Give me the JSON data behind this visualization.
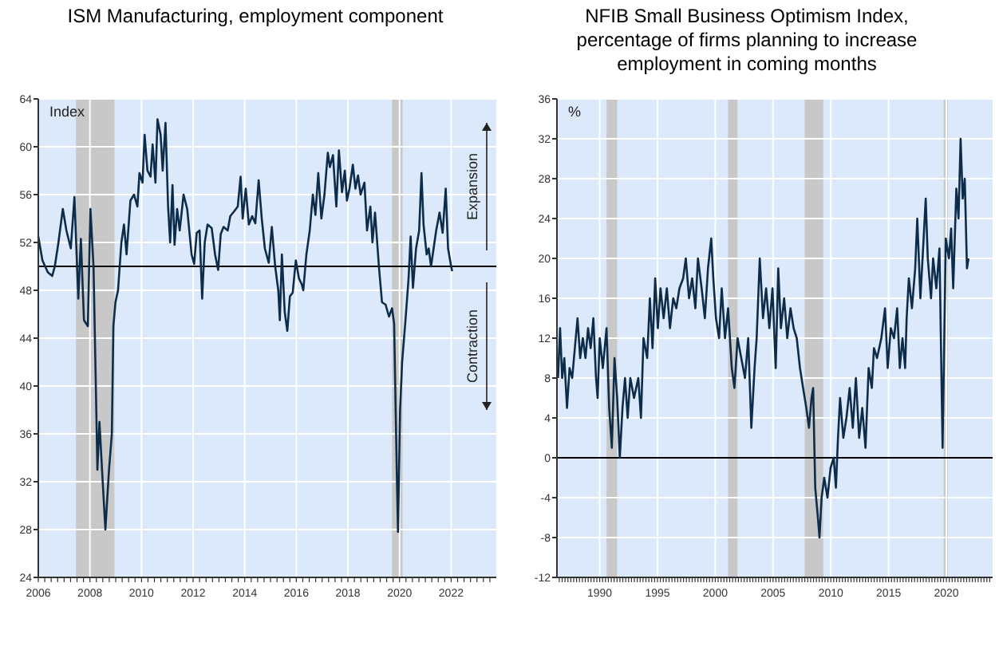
{
  "chart_data": [
    {
      "type": "line",
      "title": "ISM Manufacturing, employment component",
      "ylabel": "Index",
      "grid": true,
      "xlim": [
        2006,
        2023.75
      ],
      "xticks": [
        2006,
        2008,
        2010,
        2012,
        2014,
        2016,
        2018,
        2020,
        2022
      ],
      "ylim": [
        24,
        64
      ],
      "yticks": [
        24,
        28,
        32,
        36,
        40,
        44,
        48,
        52,
        56,
        60,
        64
      ],
      "ref_lines": [
        {
          "axis": "y",
          "value": 50,
          "color": "#000000"
        }
      ],
      "bands": [
        {
          "axis": "x",
          "from": 2007.46,
          "to": 2008.95,
          "color": "#c8c8c8"
        },
        {
          "axis": "x",
          "from": 2019.71,
          "to": 2020.12,
          "color": "#c8c8c8"
        }
      ],
      "annotations": [
        "Expansion",
        "Contraction"
      ],
      "series": [
        {
          "color": "#0d2c4a",
          "x": [
            2006.0,
            2006.16,
            2006.37,
            2006.54,
            2006.64,
            2006.78,
            2006.95,
            2007.09,
            2007.26,
            2007.4,
            2007.55,
            2007.65,
            2007.77,
            2007.92,
            2008.02,
            2008.14,
            2008.23,
            2008.29,
            2008.37,
            2008.47,
            2008.6,
            2008.74,
            2008.85,
            2008.91,
            2008.99,
            2009.09,
            2009.22,
            2009.32,
            2009.42,
            2009.57,
            2009.71,
            2009.84,
            2009.92,
            2010.04,
            2010.12,
            2010.23,
            2010.35,
            2010.43,
            2010.54,
            2010.62,
            2010.74,
            2010.82,
            2010.93,
            2011.03,
            2011.11,
            2011.2,
            2011.28,
            2011.38,
            2011.48,
            2011.63,
            2011.77,
            2011.94,
            2012.04,
            2012.14,
            2012.25,
            2012.35,
            2012.45,
            2012.56,
            2012.72,
            2012.85,
            2012.97,
            2013.07,
            2013.18,
            2013.34,
            2013.44,
            2013.59,
            2013.73,
            2013.84,
            2013.92,
            2014.04,
            2014.16,
            2014.29,
            2014.41,
            2014.54,
            2014.66,
            2014.78,
            2014.93,
            2015.05,
            2015.18,
            2015.3,
            2015.36,
            2015.44,
            2015.55,
            2015.65,
            2015.75,
            2015.86,
            2015.98,
            2016.1,
            2016.21,
            2016.27,
            2016.39,
            2016.52,
            2016.64,
            2016.74,
            2016.85,
            2016.97,
            2017.09,
            2017.22,
            2017.3,
            2017.42,
            2017.55,
            2017.65,
            2017.77,
            2017.88,
            2017.96,
            2018.06,
            2018.19,
            2018.29,
            2018.39,
            2018.49,
            2018.64,
            2018.74,
            2018.87,
            2018.95,
            2019.05,
            2019.2,
            2019.32,
            2019.46,
            2019.59,
            2019.71,
            2019.79,
            2019.9,
            2019.94,
            2020.02,
            2020.1,
            2020.23,
            2020.35,
            2020.43,
            2020.52,
            2020.64,
            2020.76,
            2020.85,
            2020.93,
            2021.05,
            2021.13,
            2021.22,
            2021.32,
            2021.42,
            2021.55,
            2021.67,
            2021.79,
            2021.88,
            2022.0,
            2022.04
          ],
          "values": [
            52.5,
            50.5,
            49.5,
            49.2,
            50,
            52,
            54.8,
            53,
            51.5,
            55.8,
            47.3,
            52.3,
            45.5,
            45,
            54.8,
            50,
            40,
            33,
            37,
            33,
            28,
            33,
            36,
            45,
            47,
            48,
            52,
            53.5,
            51,
            55.5,
            56,
            55,
            57.8,
            57,
            61,
            58,
            57.5,
            60.2,
            57,
            62.3,
            61,
            58,
            62,
            55,
            52,
            56.8,
            51.8,
            54.8,
            53,
            56,
            54.8,
            51,
            50.2,
            52.8,
            53,
            47.3,
            52,
            53.5,
            53.2,
            51,
            49.7,
            52.7,
            53.3,
            53,
            54.2,
            54.6,
            55,
            57.5,
            54,
            56.5,
            53.5,
            54.2,
            53.6,
            57.2,
            54,
            51.5,
            50.3,
            53.3,
            50,
            48,
            45.5,
            51,
            46.2,
            44.6,
            47.5,
            47.8,
            50.5,
            49,
            48.5,
            48,
            51,
            53,
            56,
            54.3,
            57.8,
            54,
            56,
            59.5,
            58.3,
            59.3,
            55,
            59.7,
            56.2,
            58,
            55.5,
            56.5,
            58.5,
            56.5,
            57.6,
            56,
            57,
            53,
            55,
            52,
            54.5,
            50,
            47,
            46.8,
            45.8,
            46.5,
            45.2,
            32,
            27.8,
            38,
            42,
            45.5,
            49,
            52.5,
            48.2,
            51.5,
            53,
            57.8,
            53.5,
            51,
            51.5,
            50,
            51.5,
            53,
            54.5,
            52.8,
            56.5,
            51.5,
            50,
            49.6
          ]
        }
      ]
    },
    {
      "type": "line",
      "title": "NFIB Small Business Optimism Index, percentage of firms planning to increase employment in coming months",
      "ylabel": "%",
      "grid": true,
      "xlim": [
        1986.3,
        2024
      ],
      "xticks": [
        1990,
        1995,
        2000,
        2005,
        2010,
        2015,
        2020
      ],
      "ylim": [
        -12,
        36
      ],
      "yticks": [
        -12,
        -8,
        -4,
        0,
        4,
        8,
        12,
        16,
        20,
        24,
        28,
        32,
        36
      ],
      "ref_lines": [
        {
          "axis": "y",
          "value": 0,
          "color": "#000000"
        }
      ],
      "bands": [
        {
          "axis": "x",
          "from": 1990.59,
          "to": 1991.51,
          "color": "#c8c8c8"
        },
        {
          "axis": "x",
          "from": 2001.11,
          "to": 2001.93,
          "color": "#c8c8c8"
        },
        {
          "axis": "x",
          "from": 2007.74,
          "to": 2009.34,
          "color": "#c8c8c8"
        },
        {
          "axis": "x",
          "from": 2019.77,
          "to": 2020.13,
          "color": "#c8c8c8"
        }
      ],
      "series": [
        {
          "color": "#0d2c4a",
          "x": [
            1986.39,
            1986.57,
            1986.75,
            1986.94,
            1987.17,
            1987.39,
            1987.62,
            1987.85,
            1988.08,
            1988.31,
            1988.54,
            1988.77,
            1988.99,
            1989.22,
            1989.45,
            1989.68,
            1989.82,
            1990.0,
            1990.27,
            1990.59,
            1990.82,
            1991.05,
            1991.28,
            1991.51,
            1991.74,
            1991.97,
            1992.19,
            1992.42,
            1992.65,
            1992.97,
            1993.34,
            1993.57,
            1993.79,
            1994.11,
            1994.34,
            1994.57,
            1994.8,
            1995.03,
            1995.26,
            1995.53,
            1995.81,
            1996.08,
            1996.36,
            1996.63,
            1996.9,
            1997.22,
            1997.45,
            1997.73,
            1998.0,
            1998.28,
            1998.5,
            1998.82,
            1999.1,
            1999.37,
            1999.65,
            1999.83,
            2000.06,
            2000.33,
            2000.56,
            2000.84,
            2001.11,
            2001.43,
            2001.66,
            2001.93,
            2002.25,
            2002.57,
            2002.85,
            2003.12,
            2003.4,
            2003.58,
            2003.85,
            2004.13,
            2004.4,
            2004.68,
            2004.95,
            2005.23,
            2005.45,
            2005.68,
            2005.96,
            2006.23,
            2006.51,
            2006.78,
            2007.05,
            2007.33,
            2007.6,
            2007.88,
            2008.11,
            2008.33,
            2008.47,
            2008.65,
            2008.88,
            2009.02,
            2009.2,
            2009.43,
            2009.71,
            2009.98,
            2010.25,
            2010.44,
            2010.62,
            2010.8,
            2011.08,
            2011.35,
            2011.63,
            2011.9,
            2012.17,
            2012.45,
            2012.72,
            2013.0,
            2013.27,
            2013.55,
            2013.73,
            2014.0,
            2014.37,
            2014.69,
            2014.92,
            2015.19,
            2015.47,
            2015.74,
            2015.97,
            2016.2,
            2016.43,
            2016.56,
            2016.75,
            2017.02,
            2017.3,
            2017.48,
            2017.75,
            2018.03,
            2018.21,
            2018.39,
            2018.67,
            2018.85,
            2019.13,
            2019.4,
            2019.67,
            2019.95,
            2020.22,
            2020.41,
            2020.59,
            2020.86,
            2021.05,
            2021.23,
            2021.41,
            2021.59,
            2021.78,
            2021.91
          ],
          "values": [
            8,
            13,
            8,
            10,
            5,
            9,
            8,
            11,
            14,
            10,
            12,
            10,
            13,
            11,
            14,
            8,
            6,
            12,
            9,
            13,
            5,
            1,
            10,
            6,
            0,
            5,
            8,
            4,
            8,
            6,
            8,
            4,
            12,
            10,
            16,
            11,
            18,
            13,
            17,
            14,
            17,
            13,
            16,
            15,
            17,
            18,
            20,
            16,
            18,
            15,
            20,
            17,
            14,
            19,
            22,
            18,
            14,
            12,
            17,
            12,
            15,
            9,
            7,
            12,
            10,
            8,
            12,
            3,
            9,
            12,
            20,
            14,
            17,
            13,
            17,
            9,
            19,
            13,
            16,
            12,
            15,
            13,
            12,
            9,
            7,
            5,
            3,
            6,
            7,
            -3,
            -6,
            -8,
            -4,
            -2,
            -4,
            -1,
            0,
            -3,
            2,
            6,
            2,
            4,
            7,
            3,
            8,
            2,
            5,
            1,
            9,
            7,
            11,
            10,
            12,
            15,
            9,
            13,
            12,
            15,
            9,
            12,
            9,
            14,
            18,
            15,
            19,
            24,
            16,
            22,
            26,
            20,
            16,
            20,
            17,
            21,
            1,
            22,
            20,
            23,
            17,
            27,
            24,
            32,
            26,
            28,
            19,
            20
          ]
        }
      ]
    }
  ]
}
